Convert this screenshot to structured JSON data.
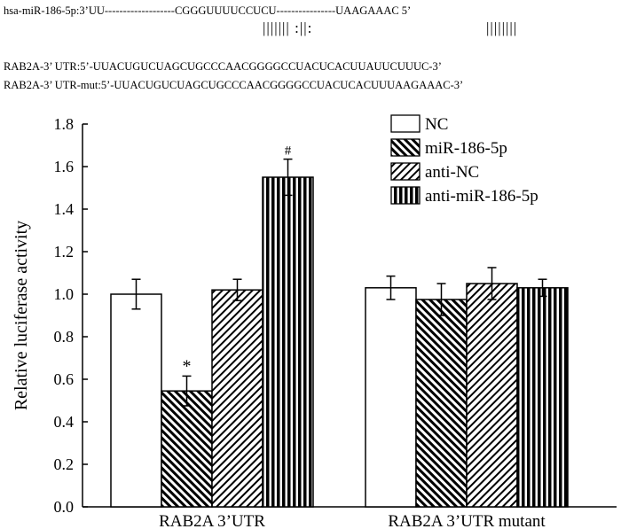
{
  "alignment": {
    "mirna_line": "hsa-miR-186-5p:3’UU-------------------CGGGUUUUCCUCU----------------UAAGAAAC 5’",
    "pairing_marks_1": "||||||| :||:",
    "pairing_marks_2": "||||||||",
    "utr_wt_line": "RAB2A-3’ UTR:5’-UUACUGUCUAGCUGCCCAACGGGGCCUACUCACUUAUUCUUUC-3’",
    "utr_mut_line": "RAB2A-3’ UTR-mut:5’-UUACUGUCUAGCUGCCCAACGGGGCCUACUCACUUUAAGAAAC-3’"
  },
  "chart_data": {
    "type": "bar",
    "title": "",
    "xlabel": "",
    "ylabel": "Relative luciferase activity",
    "ylim": [
      0,
      1.8
    ],
    "yticks": [
      "0.0",
      "0.2",
      "0.4",
      "0.6",
      "0.8",
      "1.0",
      "1.2",
      "1.4",
      "1.6",
      "1.8"
    ],
    "categories": [
      "RAB2A 3’UTR",
      "RAB2A 3’UTR mutant"
    ],
    "series": [
      {
        "name": "NC",
        "pattern": "blank",
        "values": [
          1.0,
          1.03
        ],
        "errors": [
          0.07,
          0.055
        ],
        "annotations": [
          "",
          ""
        ]
      },
      {
        "name": "miR-186-5p",
        "pattern": "backslash",
        "values": [
          0.545,
          0.975
        ],
        "errors": [
          0.07,
          0.075
        ],
        "annotations": [
          "*",
          ""
        ]
      },
      {
        "name": "anti-NC",
        "pattern": "slash",
        "values": [
          1.02,
          1.05
        ],
        "errors": [
          0.05,
          0.075
        ],
        "annotations": [
          "",
          ""
        ]
      },
      {
        "name": "anti-miR-186-5p",
        "pattern": "vertical",
        "values": [
          1.55,
          1.03
        ],
        "errors": [
          0.085,
          0.04
        ],
        "annotations": [
          "#",
          ""
        ]
      }
    ],
    "legend_position": "top-right"
  },
  "colors": {
    "ink": "#000000",
    "background": "#ffffff"
  }
}
